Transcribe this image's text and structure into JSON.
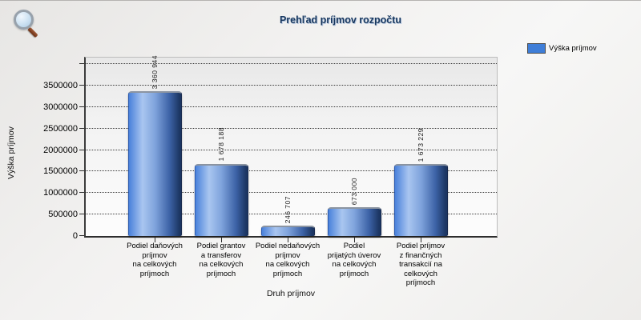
{
  "toolbar": {
    "magnifier_icon": "magnifier"
  },
  "legend": {
    "label": "Výška príjmov",
    "swatch_color": "#3f7ed8"
  },
  "colors": {
    "title_text": "#17375e",
    "legend_swatch": "#3f7ed8",
    "bar_left": "#4a82db",
    "bar_highlight": "#a9c6f0",
    "bar_dark": "#1c3663"
  },
  "chart_data": {
    "type": "bar",
    "title": "Prehľad príjmov rozpočtu",
    "xlabel": "Druh príjmov",
    "ylabel": "Výška príjmov",
    "legend": [
      {
        "name": "Výška príjmov",
        "color": "#3f7ed8"
      }
    ],
    "legend_position": "top-right",
    "grid": true,
    "ylim": [
      0,
      4000000
    ],
    "yticks": [
      0,
      500000,
      1000000,
      1500000,
      2000000,
      2500000,
      3000000,
      3500000
    ],
    "categories": [
      "Podiel daňových\npríjmov\nna celkových\npríjmoch",
      "Podiel grantov\na transferov\nna celkových\npríjmoch",
      "Podiel nedaňových\npríjmov\nna celkových\npríjmoch",
      "Podiel\nprijatých úverov\nna celkových\npríjmoch",
      "Podiel príjmov\nz finančných\ntransakcií na\ncelkových\npríjmoch"
    ],
    "values": [
      3360944,
      1678188,
      246707,
      673000,
      1673229
    ],
    "value_labels": [
      "3 360 944",
      "1 678 188",
      "246 707",
      "673 000",
      "1 673 229"
    ]
  }
}
